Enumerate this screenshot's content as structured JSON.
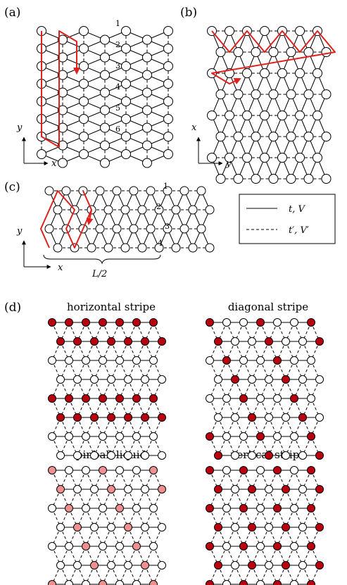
{
  "panels": {
    "a": {
      "label": "(a)",
      "axis_vertical": "y",
      "axis_horizontal": "x",
      "row_numbers": [
        "1",
        "2",
        "3",
        "4",
        "5",
        "6"
      ]
    },
    "b": {
      "label": "(b)",
      "axis_vertical": "x",
      "axis_horizontal": "y"
    },
    "c": {
      "label": "(c)",
      "axis_vertical": "y",
      "axis_horizontal": "x",
      "row_numbers": [
        "1",
        "2",
        "3",
        "4"
      ],
      "brace_label": "L/2"
    },
    "d": {
      "label": "(d)"
    }
  },
  "legend": {
    "solid_label": "t, V",
    "dashed_label": "t′, V′"
  },
  "orders": [
    {
      "title": "horizontal stripe"
    },
    {
      "title": "diagonal stripe"
    },
    {
      "title": "pinball liquid"
    },
    {
      "title": "vertical stripe"
    }
  ],
  "colors": {
    "path": "#e0201d",
    "site_filled": "#b8000f",
    "site_pinball": "#f08f8f",
    "site_empty": "#ffffff",
    "line": "#000000"
  }
}
